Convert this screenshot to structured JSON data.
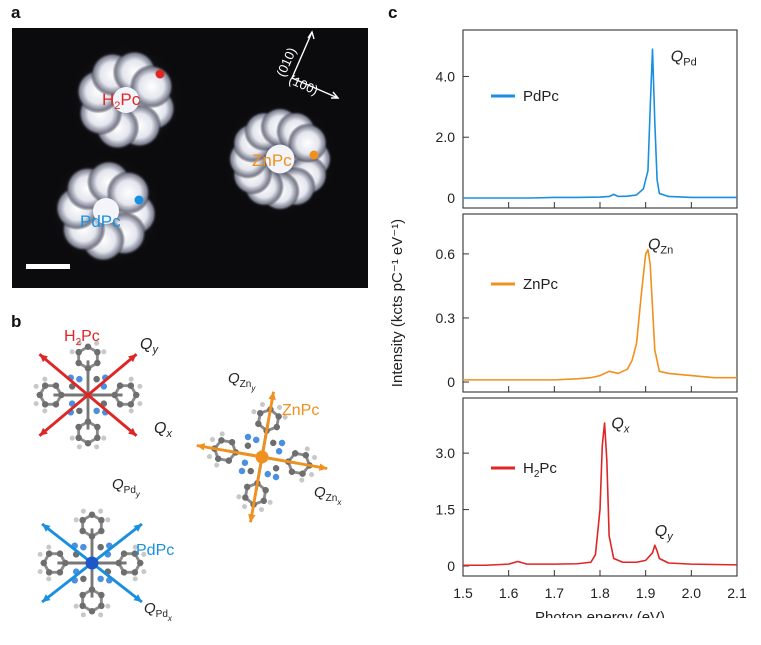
{
  "panels": {
    "a": {
      "letter": "a",
      "molecules": [
        "H",
        "2",
        "Pc",
        "ZnPc",
        "PdPc"
      ],
      "directions": [
        "(010)",
        "(100)"
      ]
    },
    "b": {
      "letter": "b",
      "h2pc": {
        "name": [
          "H",
          "2",
          "Pc"
        ],
        "qy": [
          "Q",
          "y"
        ],
        "qx": [
          "Q",
          "x"
        ]
      },
      "znpc": {
        "name": "ZnPc",
        "qy": [
          "Q",
          "Zn",
          "y"
        ],
        "qx": [
          "Q",
          "Zn",
          "x"
        ]
      },
      "pdpc": {
        "name": "PdPc",
        "qy": [
          "Q",
          "Pd",
          "y"
        ],
        "qx": [
          "Q",
          "Pd",
          "x"
        ]
      }
    },
    "c": {
      "letter": "c"
    }
  },
  "colors": {
    "pd": "#1a8fe0",
    "zn": "#f0901e",
    "h2": "#e02525"
  },
  "chart_data": {
    "type": "line",
    "xlabel": "Photon energy (eV)",
    "ylabel": "Intensity (kcts pC⁻¹ eV⁻¹)",
    "xlim": [
      1.5,
      2.1
    ],
    "xticks": [
      "1.5",
      "1.6",
      "1.7",
      "1.8",
      "1.9",
      "2.0",
      "2.1"
    ],
    "subplots": [
      {
        "name": "PdPc",
        "legend": "PdPc",
        "color": "#1a8fe0",
        "ylim": [
          0,
          5.2
        ],
        "yticks": [
          0,
          2.0,
          4.0
        ],
        "yticklabels": [
          "0",
          "2.0",
          "4.0"
        ],
        "peak_label": [
          "Q",
          "Pd"
        ],
        "peak_label_at": [
          1.955,
          4.5
        ],
        "x": [
          1.5,
          1.55,
          1.6,
          1.65,
          1.7,
          1.75,
          1.8,
          1.82,
          1.83,
          1.84,
          1.86,
          1.88,
          1.895,
          1.905,
          1.91,
          1.915,
          1.92,
          1.925,
          1.93,
          1.95,
          2.0,
          2.05,
          2.1
        ],
        "y": [
          0,
          0,
          0,
          0,
          0.02,
          0.02,
          0.03,
          0.05,
          0.12,
          0.05,
          0.06,
          0.1,
          0.3,
          0.9,
          3.0,
          4.9,
          2.5,
          0.6,
          0.15,
          0.05,
          0.02,
          0.02,
          0.02
        ]
      },
      {
        "name": "ZnPc",
        "legend": "ZnPc",
        "color": "#f0901e",
        "ylim": [
          0,
          0.74
        ],
        "yticks": [
          0,
          0.3,
          0.6
        ],
        "yticklabels": [
          "0",
          "0.3",
          "0.6"
        ],
        "peak_label": [
          "Q",
          "Zn"
        ],
        "peak_label_at": [
          1.905,
          0.62
        ],
        "x": [
          1.5,
          1.55,
          1.6,
          1.65,
          1.7,
          1.75,
          1.78,
          1.8,
          1.82,
          1.84,
          1.86,
          1.87,
          1.88,
          1.89,
          1.9,
          1.905,
          1.91,
          1.915,
          1.92,
          1.93,
          1.95,
          2.0,
          2.05,
          2.1
        ],
        "y": [
          0.01,
          0.01,
          0.01,
          0.01,
          0.01,
          0.015,
          0.02,
          0.03,
          0.05,
          0.04,
          0.06,
          0.1,
          0.18,
          0.4,
          0.6,
          0.62,
          0.55,
          0.35,
          0.15,
          0.05,
          0.04,
          0.03,
          0.02,
          0.02
        ]
      },
      {
        "name": "H2Pc",
        "legend": [
          "H",
          "2",
          "Pc"
        ],
        "color": "#e02525",
        "ylim": [
          0,
          4.2
        ],
        "yticks": [
          0,
          1.5,
          3.0
        ],
        "yticklabels": [
          "0",
          "1.5",
          "3.0"
        ],
        "peak_label": [
          "Q",
          "x"
        ],
        "peak_label_at": [
          1.825,
          3.65
        ],
        "peak2_label": [
          "Q",
          "y"
        ],
        "peak2_label_at": [
          1.92,
          0.8
        ],
        "x": [
          1.5,
          1.55,
          1.6,
          1.62,
          1.64,
          1.7,
          1.75,
          1.78,
          1.79,
          1.8,
          1.805,
          1.81,
          1.815,
          1.82,
          1.83,
          1.85,
          1.88,
          1.9,
          1.915,
          1.92,
          1.925,
          1.93,
          1.95,
          2.0,
          2.05,
          2.1
        ],
        "y": [
          0.02,
          0.02,
          0.05,
          0.12,
          0.05,
          0.05,
          0.06,
          0.1,
          0.3,
          1.5,
          3.2,
          3.8,
          2.8,
          0.8,
          0.2,
          0.1,
          0.1,
          0.15,
          0.35,
          0.55,
          0.4,
          0.2,
          0.08,
          0.05,
          0.04,
          0.03
        ]
      }
    ]
  }
}
